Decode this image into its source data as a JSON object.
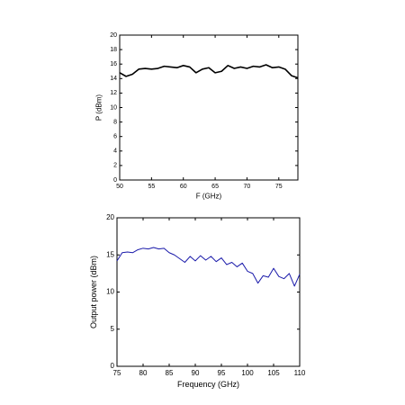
{
  "chart_data": [
    {
      "type": "line",
      "xlabel": "F (GHz)",
      "ylabel": "P (dBm)",
      "x": [
        50,
        51,
        52,
        53,
        54,
        55,
        56,
        57,
        58,
        59,
        60,
        61,
        62,
        63,
        64,
        65,
        66,
        67,
        68,
        69,
        70,
        71,
        72,
        73,
        74,
        75,
        76,
        77,
        78
      ],
      "values": [
        14.8,
        14.3,
        14.6,
        15.3,
        15.4,
        15.3,
        15.4,
        15.7,
        15.6,
        15.5,
        15.8,
        15.6,
        14.8,
        15.3,
        15.5,
        14.8,
        15.0,
        15.8,
        15.4,
        15.6,
        15.4,
        15.7,
        15.6,
        15.9,
        15.5,
        15.6,
        15.3,
        14.4,
        14.1
      ],
      "color": "#000000",
      "xlim": [
        50,
        78
      ],
      "xticks": [
        50,
        55,
        60,
        65,
        70,
        75
      ],
      "ylim": [
        0,
        20
      ],
      "yticks": [
        0,
        2,
        4,
        6,
        8,
        10,
        12,
        14,
        16,
        18,
        20
      ]
    },
    {
      "type": "line",
      "xlabel": "Frequency (GHz)",
      "ylabel": "Output power (dBm)",
      "x": [
        75,
        76,
        77,
        78,
        79,
        80,
        81,
        82,
        83,
        84,
        85,
        86,
        87,
        88,
        89,
        90,
        91,
        92,
        93,
        94,
        95,
        96,
        97,
        98,
        99,
        100,
        101,
        102,
        103,
        104,
        105,
        106,
        107,
        108,
        109,
        110
      ],
      "values": [
        14.2,
        15.3,
        15.4,
        15.3,
        15.7,
        15.9,
        15.8,
        16.0,
        15.8,
        15.9,
        15.3,
        15.0,
        14.5,
        14.0,
        14.8,
        14.2,
        14.9,
        14.3,
        14.8,
        14.1,
        14.6,
        13.7,
        14.0,
        13.4,
        13.9,
        12.8,
        12.5,
        11.2,
        12.2,
        12.0,
        13.2,
        12.1,
        11.8,
        12.5,
        10.8,
        12.4
      ],
      "color": "#1a1aaa",
      "xlim": [
        75,
        110
      ],
      "xticks": [
        75,
        80,
        85,
        90,
        95,
        100,
        105,
        110
      ],
      "ylim": [
        0,
        20
      ],
      "yticks": [
        0,
        5,
        10,
        15,
        20
      ]
    }
  ]
}
